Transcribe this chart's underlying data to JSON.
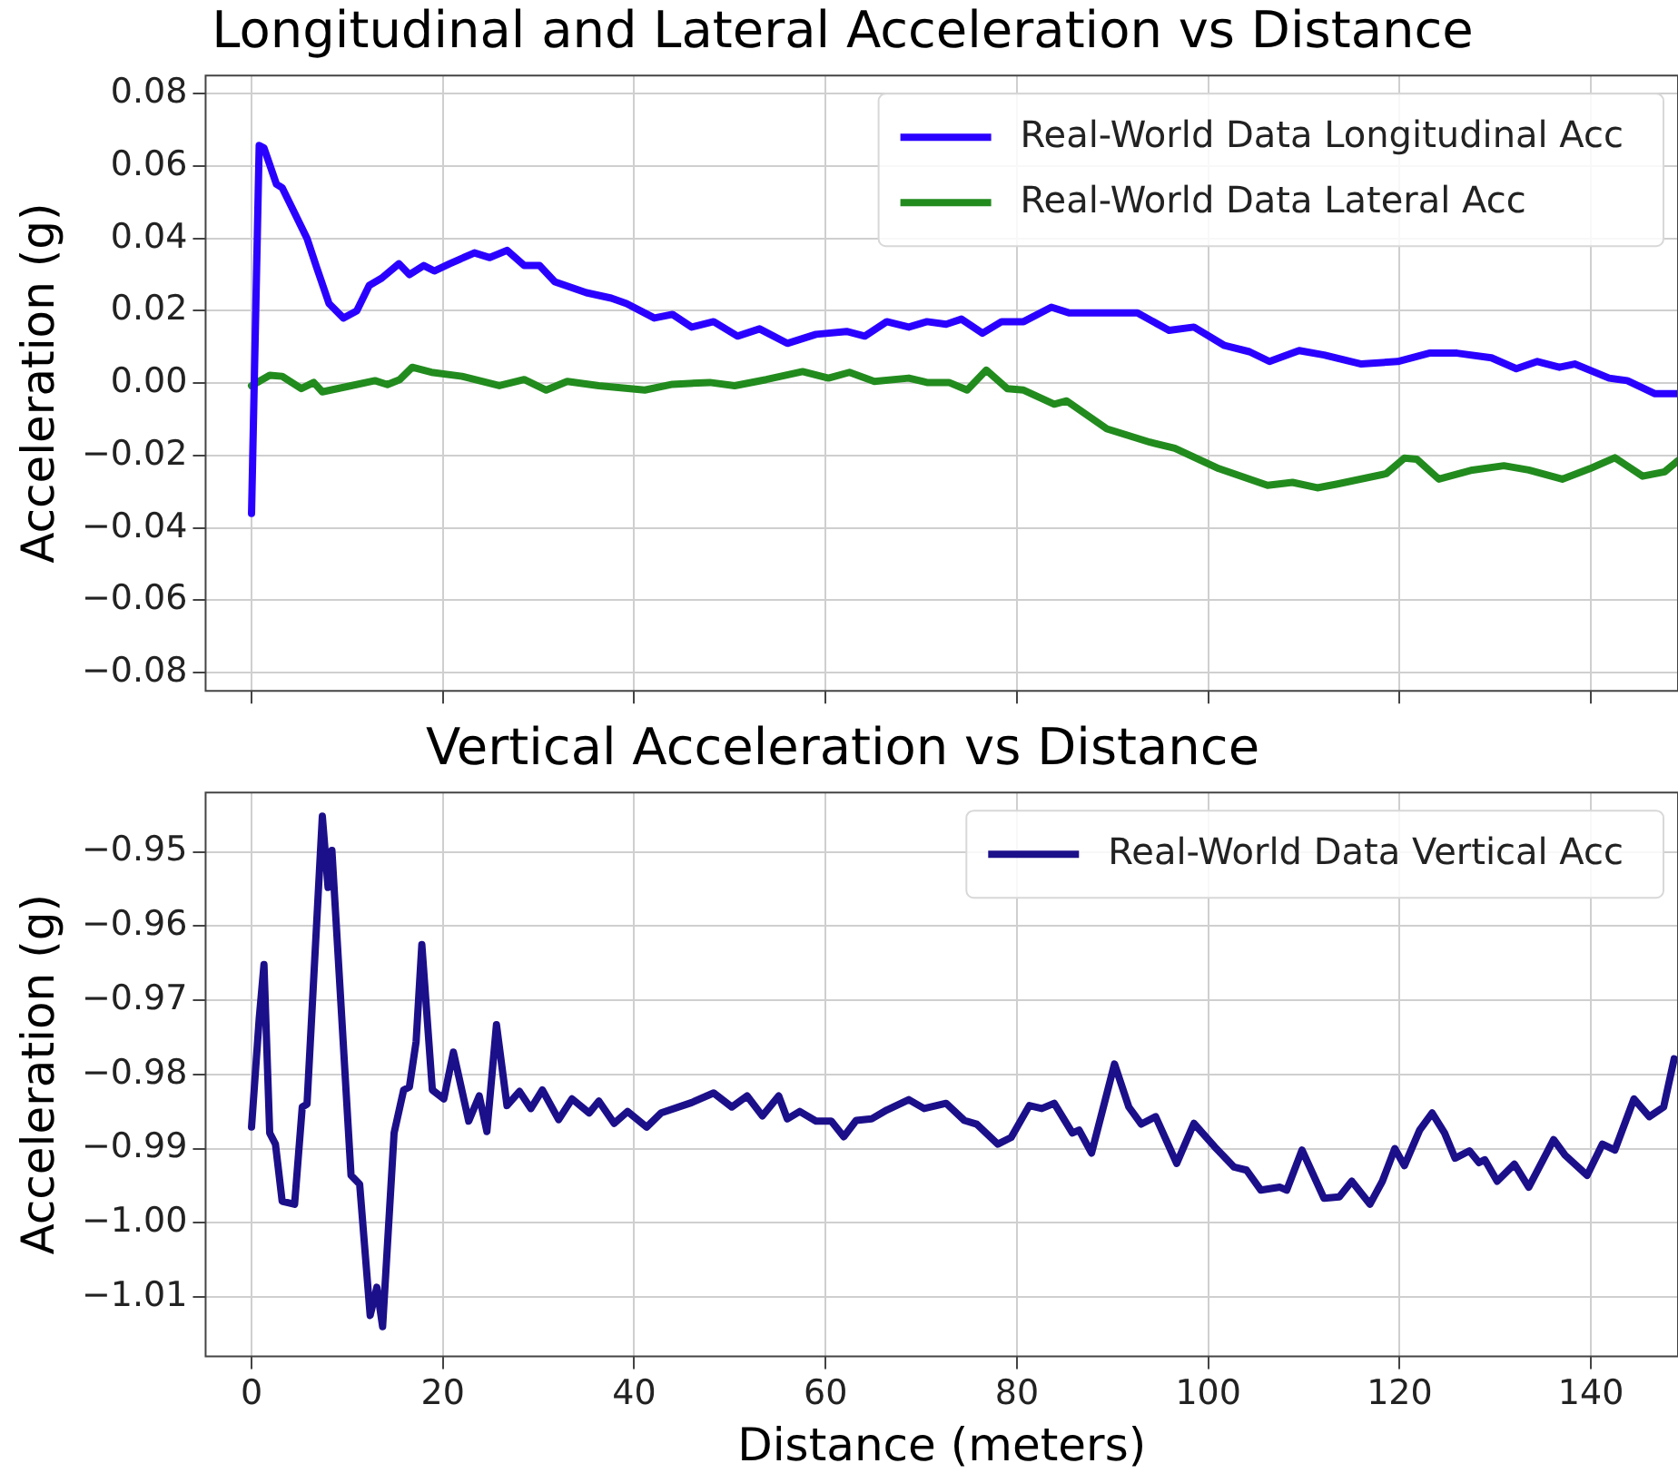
{
  "chart_data": [
    {
      "type": "line",
      "title": "Longitudinal and Lateral Acceleration vs Distance",
      "ylabel": "Acceleration (g)",
      "xlim": [
        -4.8,
        149.1
      ],
      "xticks": [
        0,
        20,
        40,
        60,
        80,
        100,
        120,
        140
      ],
      "ylim": [
        -0.085,
        0.085
      ],
      "yticks": [
        {
          "value": 0.08,
          "label": "0.08"
        },
        {
          "value": 0.06,
          "label": "0.06"
        },
        {
          "value": 0.04,
          "label": "0.04"
        },
        {
          "value": 0.02,
          "label": "0.02"
        },
        {
          "value": 0,
          "label": "0.00"
        },
        {
          "value": -0.02,
          "label": "−0.02"
        },
        {
          "value": -0.04,
          "label": "−0.04"
        },
        {
          "value": -0.06,
          "label": "−0.06"
        },
        {
          "value": -0.08,
          "label": "−0.08"
        }
      ],
      "tick_labels": "y",
      "grid": true,
      "legend": "top right",
      "line_style": "solid",
      "series": [
        {
          "name": "Real-World Data Longitudinal Acc",
          "color": "#2a00ff",
          "x": [
            0,
            0.8,
            1.3,
            2.6,
            3.2,
            5.8,
            6.8,
            8.1,
            9.6,
            11,
            12.3,
            13.6,
            15.4,
            16.5,
            18,
            19.1,
            20.7,
            23.3,
            24.9,
            26.7,
            28.5,
            30.1,
            31.7,
            35,
            37.6,
            39.2,
            42.1,
            44,
            46,
            48.3,
            50.8,
            53.1,
            56,
            59,
            62.2,
            64.1,
            66.4,
            68.7,
            70.6,
            72.6,
            74.2,
            76.4,
            78.4,
            80.7,
            83.6,
            85.5,
            92.6,
            95.9,
            98.5,
            101.7,
            104.3,
            106.4,
            109.5,
            112.1,
            116,
            119.8,
            123.1,
            126,
            129.6,
            132.2,
            134.4,
            136.7,
            138.3,
            141.9,
            143.8,
            146.7,
            149.1
          ],
          "values": [
            -0.036,
            0.0657,
            0.065,
            0.055,
            0.054,
            0.04,
            0.032,
            0.022,
            0.018,
            0.02,
            0.027,
            0.029,
            0.033,
            0.03,
            0.0325,
            0.031,
            0.033,
            0.036,
            0.0347,
            0.0367,
            0.0325,
            0.0325,
            0.028,
            0.025,
            0.0235,
            0.022,
            0.018,
            0.019,
            0.0155,
            0.017,
            0.013,
            0.015,
            0.011,
            0.0135,
            0.0143,
            0.013,
            0.017,
            0.0155,
            0.017,
            0.0163,
            0.0177,
            0.0138,
            0.017,
            0.017,
            0.021,
            0.0194,
            0.0194,
            0.0146,
            0.0155,
            0.0104,
            0.0087,
            0.006,
            0.009,
            0.0078,
            0.0053,
            0.006,
            0.0083,
            0.0083,
            0.007,
            0.004,
            0.006,
            0.0044,
            0.0053,
            0.0014,
            0.0007,
            -0.0029,
            -0.0029
          ]
        },
        {
          "name": "Real-World Data Lateral Acc",
          "color": "#228b1e",
          "x": [
            0,
            1.9,
            3.2,
            5.2,
            6.5,
            7.4,
            10.4,
            12.9,
            14.2,
            15.5,
            16.8,
            18.8,
            22,
            25.9,
            28.5,
            30.8,
            33,
            36.3,
            41.1,
            44,
            47.9,
            50.5,
            53.8,
            57.6,
            60.3,
            62.5,
            65.1,
            68.7,
            70.6,
            72.9,
            74.8,
            76.8,
            79,
            80.7,
            83.9,
            85.2,
            89.4,
            93.9,
            96.5,
            101.1,
            106.2,
            108.8,
            111.4,
            113.4,
            118.6,
            120.5,
            121.8,
            124.1,
            127.6,
            130.9,
            133.5,
            137,
            139.9,
            142.5,
            145.4,
            147.7,
            149.1
          ],
          "values": [
            -0.0007,
            0.0022,
            0.0019,
            -0.0015,
            0.0002,
            -0.0024,
            -0.0007,
            0.0007,
            -0.0004,
            0.001,
            0.0044,
            0.003,
            0.0019,
            -0.0007,
            0.001,
            -0.0019,
            0.0005,
            -0.0007,
            -0.0019,
            -0.0003,
            0.0002,
            -0.0007,
            0.001,
            0.0032,
            0.0014,
            0.003,
            0.0005,
            0.0014,
            0.0002,
            0.0002,
            -0.0019,
            0.0036,
            -0.0015,
            -0.0019,
            -0.0058,
            -0.0049,
            -0.0126,
            -0.0163,
            -0.018,
            -0.0236,
            -0.0282,
            -0.0274,
            -0.0289,
            -0.0279,
            -0.025,
            -0.0207,
            -0.021,
            -0.0265,
            -0.024,
            -0.0228,
            -0.024,
            -0.0265,
            -0.0236,
            -0.0206,
            -0.0257,
            -0.0245,
            -0.0214
          ]
        }
      ]
    },
    {
      "type": "line",
      "title": "Vertical Acceleration vs Distance",
      "xlabel": "Distance (meters)",
      "ylabel": "Acceleration (g)",
      "xlim": [
        -4.8,
        149.1
      ],
      "xticks": [
        0,
        20,
        40,
        60,
        80,
        100,
        120,
        140
      ],
      "ylim": [
        -1.018,
        -0.942
      ],
      "yticks": [
        {
          "value": -0.95,
          "label": "−0.95"
        },
        {
          "value": -0.96,
          "label": "−0.96"
        },
        {
          "value": -0.97,
          "label": "−0.97"
        },
        {
          "value": -0.98,
          "label": "−0.98"
        },
        {
          "value": -0.99,
          "label": "−0.99"
        },
        {
          "value": -1,
          "label": "−1.00"
        },
        {
          "value": -1.01,
          "label": "−1.01"
        }
      ],
      "grid": true,
      "legend": "top right",
      "line_style": "solid",
      "series": [
        {
          "name": "Real-World Data Vertical Acc",
          "color": "#1c0f8a",
          "x": [
            0,
            0.8,
            1.3,
            1.9,
            2.5,
            3.2,
            4.5,
            5.3,
            5.8,
            7.4,
            8,
            8.4,
            10.4,
            11.3,
            12.4,
            13.1,
            13.7,
            14.9,
            15.9,
            16.5,
            17.2,
            17.8,
            18.9,
            20.1,
            21.1,
            22.7,
            23.8,
            24.6,
            25.6,
            26.7,
            28,
            29.2,
            30.4,
            32.1,
            33.5,
            35.3,
            36.3,
            37.9,
            39.3,
            41.3,
            42.8,
            46,
            48.3,
            50.2,
            51.8,
            53.4,
            55.1,
            56,
            57.3,
            59,
            60.6,
            61.9,
            63.2,
            64.8,
            66.4,
            68.7,
            70.3,
            72.6,
            74.5,
            75.8,
            78,
            79.4,
            81.3,
            82.6,
            83.9,
            85.8,
            86.5,
            87.8,
            90.2,
            91.7,
            93,
            94.5,
            96.7,
            98.5,
            100.7,
            102.7,
            104,
            105.5,
            107.5,
            108.2,
            109.8,
            112.1,
            113.7,
            115,
            116.9,
            118.2,
            119.5,
            120.5,
            122.1,
            123.4,
            124.7,
            125.8,
            127.3,
            128.3,
            128.9,
            130.2,
            132,
            133.5,
            136.1,
            137.3,
            139.6,
            141.2,
            142.5,
            144.5,
            146.1,
            147.6,
            148.7
          ],
          "values": [
            -0.9871,
            -0.9725,
            -0.9652,
            -0.9879,
            -0.9894,
            -0.9971,
            -0.9975,
            -0.9844,
            -0.984,
            -0.9452,
            -0.9548,
            -0.9498,
            -0.9936,
            -0.9948,
            -1.0125,
            -1.0087,
            -1.014,
            -0.9879,
            -0.9821,
            -0.9817,
            -0.9756,
            -0.9625,
            -0.9821,
            -0.9833,
            -0.977,
            -0.9863,
            -0.9829,
            -0.9877,
            -0.9733,
            -0.9842,
            -0.9823,
            -0.9846,
            -0.9821,
            -0.9861,
            -0.9833,
            -0.9852,
            -0.9836,
            -0.9866,
            -0.985,
            -0.9871,
            -0.9852,
            -0.9838,
            -0.9825,
            -0.9844,
            -0.9829,
            -0.9856,
            -0.9829,
            -0.986,
            -0.985,
            -0.9863,
            -0.9863,
            -0.9884,
            -0.9862,
            -0.986,
            -0.9848,
            -0.9834,
            -0.9846,
            -0.9839,
            -0.9862,
            -0.9867,
            -0.9894,
            -0.9885,
            -0.9842,
            -0.9846,
            -0.9839,
            -0.9879,
            -0.9875,
            -0.9906,
            -0.9786,
            -0.9844,
            -0.9867,
            -0.9857,
            -0.992,
            -0.9866,
            -0.9898,
            -0.9925,
            -0.9929,
            -0.9956,
            -0.9952,
            -0.9956,
            -0.9902,
            -0.9967,
            -0.9965,
            -0.9944,
            -0.9975,
            -0.9944,
            -0.99,
            -0.9923,
            -0.9875,
            -0.9852,
            -0.9879,
            -0.9913,
            -0.9903,
            -0.9919,
            -0.9915,
            -0.9944,
            -0.9921,
            -0.9952,
            -0.9888,
            -0.9909,
            -0.9936,
            -0.9894,
            -0.9902,
            -0.9833,
            -0.9857,
            -0.9844,
            -0.9779
          ]
        }
      ]
    }
  ]
}
